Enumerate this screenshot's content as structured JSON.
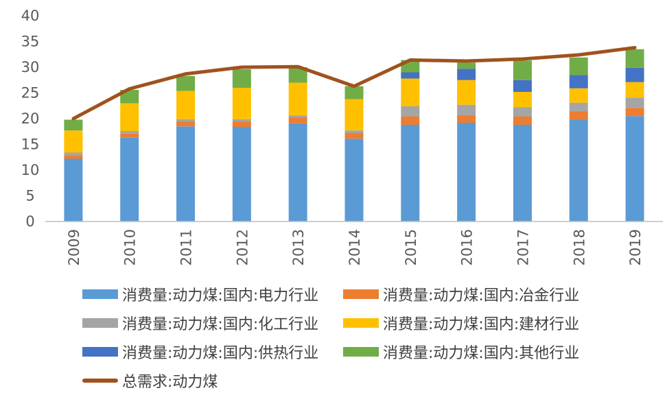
{
  "chart_data": {
    "type": "bar",
    "stacked": true,
    "categories": [
      "2009",
      "2010",
      "2011",
      "2012",
      "2013",
      "2014",
      "2015",
      "2016",
      "2017",
      "2018",
      "2019"
    ],
    "ylim": [
      0,
      40
    ],
    "yticks": [
      "0",
      "5",
      "10",
      "15",
      "20",
      "25",
      "30",
      "35",
      "40"
    ],
    "gridlines": false,
    "legend_position": "bottom",
    "series": [
      {
        "name": "消费量:动力煤:国内:电力行业",
        "color": "#5B9BD5",
        "values": [
          12.2,
          16.3,
          18.5,
          18.4,
          19.1,
          16.1,
          18.8,
          19.2,
          18.8,
          19.8,
          20.5
        ]
      },
      {
        "name": "消费量:动力煤:国内:冶金行业",
        "color": "#ED7D31",
        "values": [
          0.7,
          0.8,
          0.9,
          1.0,
          1.1,
          1.1,
          1.6,
          1.4,
          1.6,
          1.6,
          1.6
        ]
      },
      {
        "name": "消费量:动力煤:国内:化工行业",
        "color": "#A5A5A5",
        "values": [
          0.5,
          0.5,
          0.5,
          0.5,
          0.4,
          0.5,
          2.0,
          2.1,
          1.8,
          1.7,
          2.0
        ]
      },
      {
        "name": "消费量:动力煤:国内:建材行业",
        "color": "#FFC000",
        "values": [
          4.3,
          5.4,
          5.5,
          6.1,
          6.4,
          6.1,
          5.4,
          4.8,
          3.0,
          2.8,
          3.0
        ]
      },
      {
        "name": "消费量:动力煤:国内:供热行业",
        "color": "#4472C4",
        "values": [
          0,
          0,
          0,
          0,
          0,
          0,
          1.2,
          2.2,
          2.3,
          2.6,
          2.8
        ]
      },
      {
        "name": "消费量:动力煤:国内:其他行业",
        "color": "#70AD47",
        "values": [
          2.1,
          2.6,
          2.9,
          3.6,
          3.0,
          2.5,
          2.4,
          1.2,
          3.8,
          3.4,
          3.6
        ]
      }
    ],
    "line": {
      "name": "总需求:动力煤",
      "color": "#A0521D",
      "values": [
        20.0,
        25.8,
        28.7,
        30.0,
        30.1,
        26.3,
        31.4,
        31.2,
        31.6,
        32.4,
        33.8
      ]
    }
  }
}
